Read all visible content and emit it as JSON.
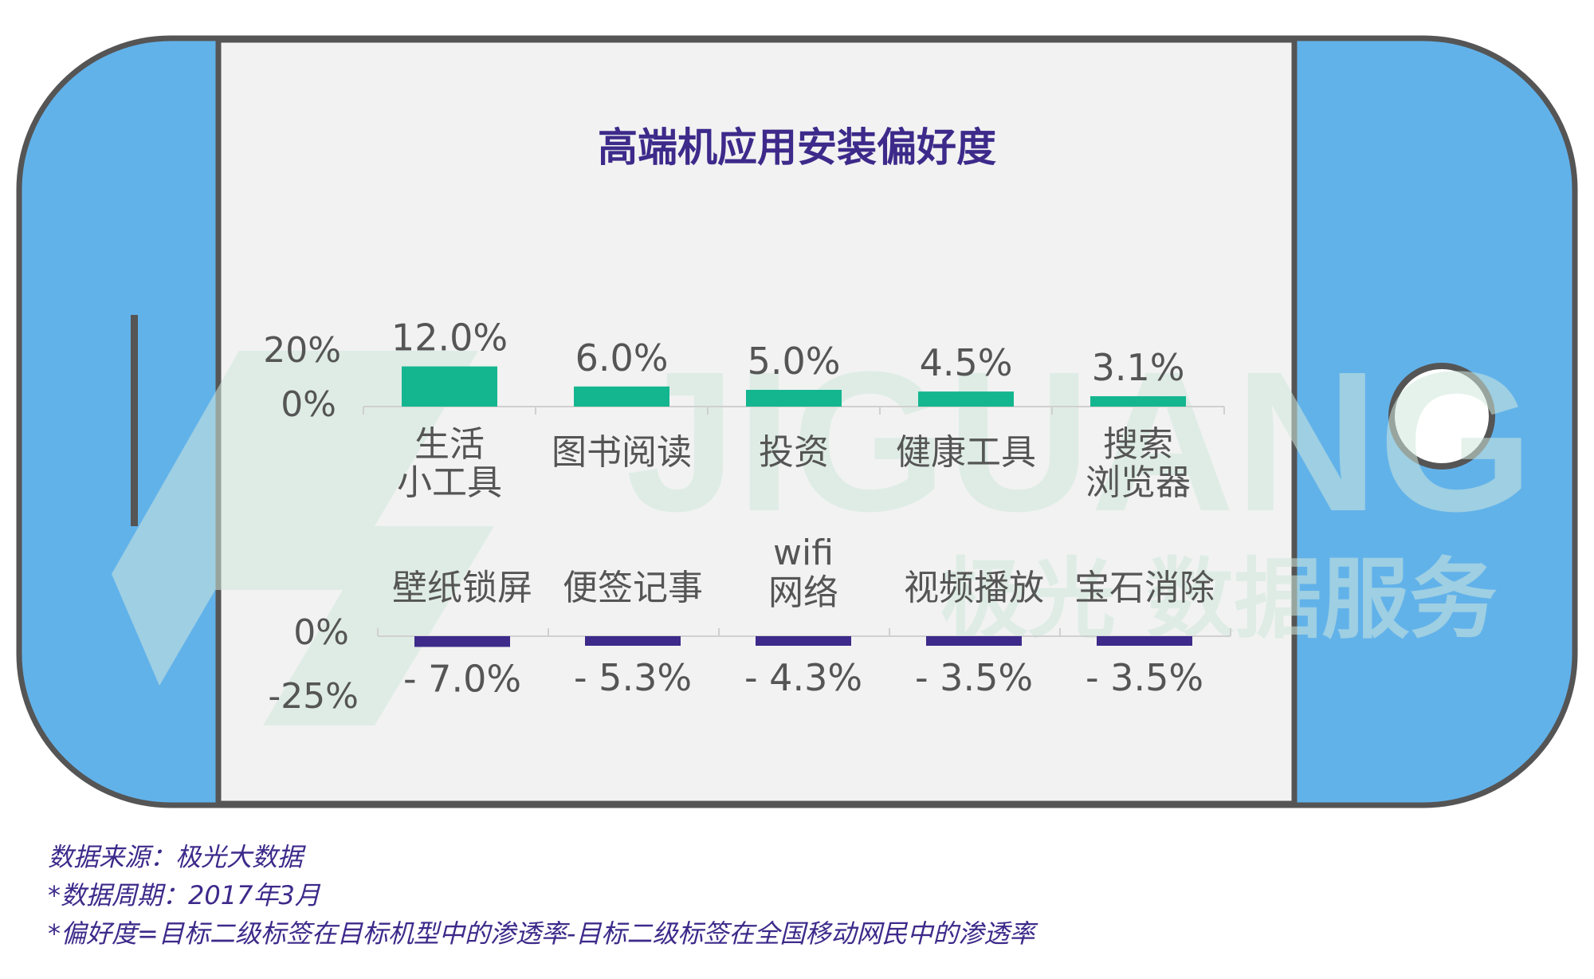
{
  "colors": {
    "phone_body": "#62b2ea",
    "phone_border": "#555555",
    "screen_bg": "#f2f2f2",
    "positive_bar": "#14b68f",
    "negative_bar": "#3d2a8a",
    "title": "#3d2a8a",
    "label": "#555555",
    "watermark": "#cfe8dc"
  },
  "watermark": {
    "latin": "JIGUANG",
    "chinese": "极光 数据服务"
  },
  "chart_data": [
    {
      "type": "bar",
      "title": "高端机应用安装偏好度",
      "categories": [
        [
          "生活",
          "小工具"
        ],
        [
          "图书阅读"
        ],
        [
          "投资"
        ],
        [
          "健康工具"
        ],
        [
          "搜索",
          "浏览器"
        ]
      ],
      "values": [
        12.0,
        6.0,
        5.0,
        4.5,
        3.1
      ],
      "value_labels": [
        "12.0%",
        "6.0%",
        "5.0%",
        "4.5%",
        "3.1%"
      ],
      "y_ticks": [
        "20%",
        "0%"
      ],
      "ylim": [
        0,
        20
      ]
    },
    {
      "type": "bar",
      "categories": [
        [
          "壁纸锁屏"
        ],
        [
          "便签记事"
        ],
        [
          "wifi",
          "网络"
        ],
        [
          "视频播放"
        ],
        [
          "宝石消除"
        ]
      ],
      "values": [
        -7.0,
        -5.3,
        -4.3,
        -3.5,
        -3.5
      ],
      "value_labels": [
        "- 7.0%",
        "- 5.3%",
        "- 4.3%",
        "- 3.5%",
        "- 3.5%"
      ],
      "y_ticks": [
        "0%",
        "-25%"
      ],
      "ylim": [
        -25,
        0
      ]
    }
  ],
  "notes": [
    "数据来源：极光大数据",
    "*数据周期：2017年3月",
    "*偏好度=目标二级标签在目标机型中的渗透率-目标二级标签在全国移动网民中的渗透率"
  ]
}
